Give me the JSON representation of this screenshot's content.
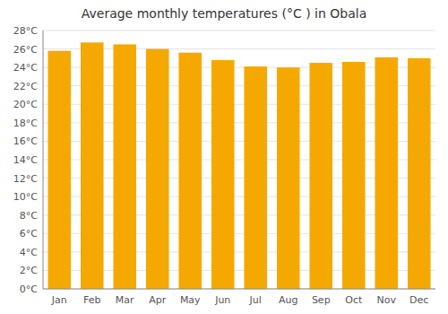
{
  "chart_data": {
    "type": "bar",
    "title": "Average monthly temperatures (°C ) in Obala",
    "categories": [
      "Jan",
      "Feb",
      "Mar",
      "Apr",
      "May",
      "Jun",
      "Jul",
      "Aug",
      "Sep",
      "Oct",
      "Nov",
      "Dec"
    ],
    "values": [
      25.8,
      26.7,
      26.5,
      26.0,
      25.6,
      24.8,
      24.1,
      24.0,
      24.5,
      24.6,
      25.1,
      25.0
    ],
    "color": "#F5A800",
    "ylim": [
      0,
      28
    ],
    "yticks": [
      {
        "value": 0,
        "label": "0°C"
      },
      {
        "value": 2,
        "label": "2°C"
      },
      {
        "value": 4,
        "label": "4°C"
      },
      {
        "value": 6,
        "label": "6°C"
      },
      {
        "value": 8,
        "label": "8°C"
      },
      {
        "value": 10,
        "label": "10°C"
      },
      {
        "value": 12,
        "label": "12°C"
      },
      {
        "value": 14,
        "label": "14°C"
      },
      {
        "value": 16,
        "label": "16°C"
      },
      {
        "value": 18,
        "label": "18°C"
      },
      {
        "value": 20,
        "label": "20°C"
      },
      {
        "value": 22,
        "label": "22°C"
      },
      {
        "value": 24,
        "label": "24°C"
      },
      {
        "value": 26,
        "label": "26°C"
      },
      {
        "value": 28,
        "label": "28°C"
      }
    ],
    "grid": true
  }
}
